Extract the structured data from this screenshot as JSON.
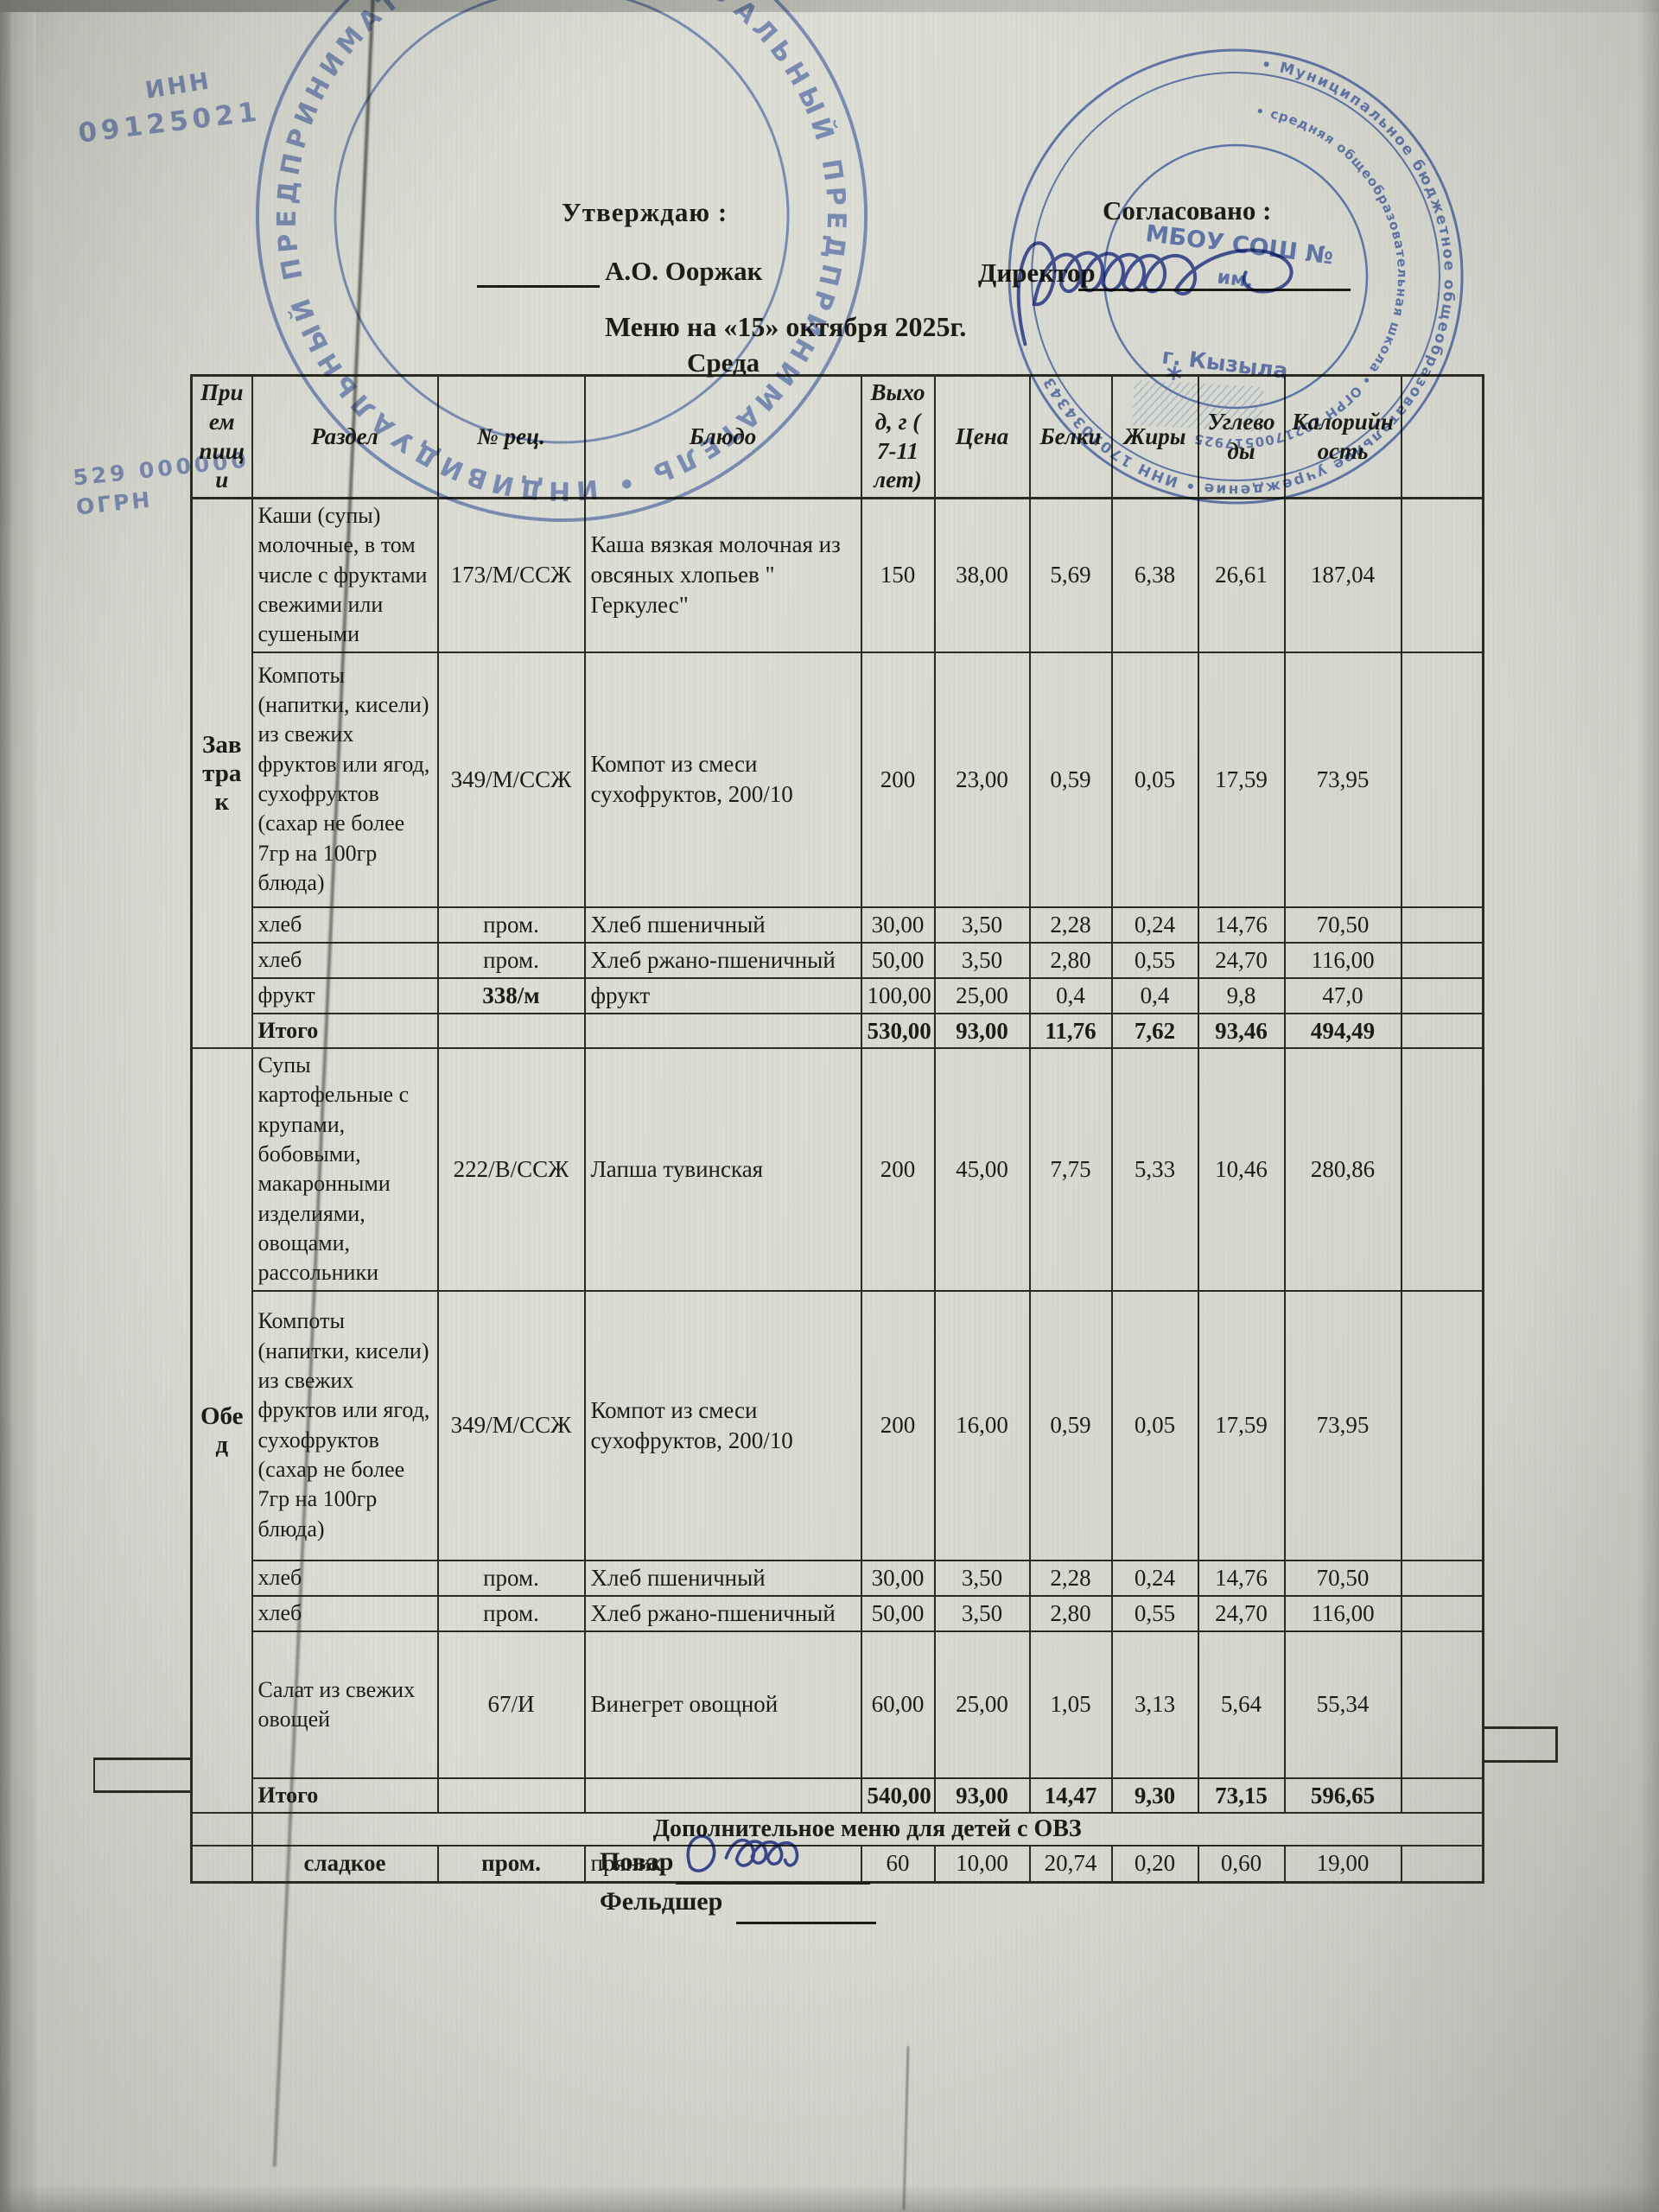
{
  "header": {
    "approve_label": "Утверждаю   :",
    "approve_name": "А.О. Ооржак",
    "agree_label": "Согласовано :",
    "director_label": "Директор",
    "title": "Меню на «15»  октября  2025г.",
    "weekday": "Среда"
  },
  "footer": {
    "cook_label": "Повар",
    "paramedic_label": "Фельдшер"
  },
  "table": {
    "headers": [
      "Прием пищи",
      "Раздел",
      "№ рец.",
      "Блюдо",
      "Выход, г ( 7-11 лет)",
      "Цена",
      "Белки",
      "Жиры",
      "Углеводы",
      "Калорийность"
    ],
    "sections": [
      {
        "meal": "Завтрак",
        "rows": [
          {
            "razdel": "Каши (супы) молочные, в том числе с фруктами свежими или сушеными",
            "rec": "173/М/ССЖ",
            "dish": "Каша вязкая молочная из овсяных хлопьев \" Геркулес\"",
            "values": [
              "150",
              "38,00",
              "5,69",
              "6,38",
              "26,61",
              "187,04"
            ]
          },
          {
            "razdel": "Компоты (напитки, кисели) из свежих фруктов или ягод, сухофруктов (сахар не более 7гр на 100гр блюда)",
            "rec": "349/М/ССЖ",
            "dish": "Компот из смеси сухофруктов, 200/10",
            "values": [
              "200",
              "23,00",
              "0,59",
              "0,05",
              "17,59",
              "73,95"
            ]
          },
          {
            "razdel": "хлеб",
            "rec": "пром.",
            "dish": "Хлеб пшеничный",
            "values": [
              "30,00",
              "3,50",
              "2,28",
              "0,24",
              "14,76",
              "70,50"
            ]
          },
          {
            "razdel": "хлеб",
            "rec": "пром.",
            "dish": "Хлеб ржано-пшеничный",
            "values": [
              "50,00",
              "3,50",
              "2,80",
              "0,55",
              "24,70",
              "116,00"
            ]
          },
          {
            "razdel": "фрукт",
            "rec": "338/м",
            "recBold": true,
            "dish": "фрукт",
            "values": [
              "100,00",
              "25,00",
              "0,4",
              "0,4",
              "9,8",
              "47,0"
            ]
          },
          {
            "razdel": "Итого",
            "rec": "",
            "dish": "",
            "values": [
              "530,00",
              "93,00",
              "11,76",
              "7,62",
              "93,46",
              "494,49"
            ],
            "total": true
          }
        ]
      },
      {
        "meal": "Обед",
        "rows": [
          {
            "razdel": "Супы картофельные с крупами, бобовыми, макаронными изделиями, овощами, рассольники",
            "rec": "222/В/ССЖ",
            "dish": "Лапша тувинская",
            "values": [
              "200",
              "45,00",
              "7,75",
              "5,33",
              "10,46",
              "280,86"
            ]
          },
          {
            "razdel": "Компоты (напитки, кисели) из свежих фруктов или ягод, сухофруктов (сахар не более 7гр на 100гр блюда)",
            "rec": "349/М/ССЖ",
            "dish": "Компот из смеси сухофруктов, 200/10",
            "values": [
              "200",
              "16,00",
              "0,59",
              "0,05",
              "17,59",
              "73,95"
            ]
          },
          {
            "razdel": "хлеб",
            "rec": "пром.",
            "dish": "Хлеб пшеничный",
            "values": [
              "30,00",
              "3,50",
              "2,28",
              "0,24",
              "14,76",
              "70,50"
            ]
          },
          {
            "razdel": "хлеб",
            "rec": "пром.",
            "dish": "Хлеб ржано-пшеничный",
            "values": [
              "50,00",
              "3,50",
              "2,80",
              "0,55",
              "24,70",
              "116,00"
            ]
          },
          {
            "razdel": "Салат из свежих овощей",
            "rec": "67/И",
            "dish": "Винегрет овощной",
            "values": [
              "60,00",
              "25,00",
              "1,05",
              "3,13",
              "5,64",
              "55,34"
            ]
          },
          {
            "razdel": "Итого",
            "rec": "",
            "dish": "",
            "values": [
              "540,00",
              "93,00",
              "14,47",
              "9,30",
              "73,15",
              "596,65"
            ],
            "total": true
          }
        ]
      }
    ],
    "extra_banner": "Дополнительное меню для детей с ОВЗ",
    "extra_row": {
      "razdel": "сладкое",
      "rec": "пром.",
      "dish": "пряник",
      "values": [
        "60",
        "10,00",
        "20,74",
        "0,20",
        "0,60",
        "19,00"
      ]
    }
  },
  "stamps": {
    "ink_color": "#4866ba",
    "left": {
      "rim_text": "• ИНДИВИДУАЛЬНЫЙ ПРЕДПРИНИМАТЕЛЬ • ИНДИВИДУАЛЬНЫЙ ПРЕДПРИНИМАТЕЛЬ ",
      "fragments": [
        "ИНН",
        "09125021",
        "529  000000",
        "ОГРН"
      ]
    },
    "right": {
      "rim_outer": "• Муниципальное бюджетное общеобразовательное учреждение • ИНН 1701034343 ",
      "rim_inner": "• средняя общеобразовательная школа • ОГРН 1021700517925 ",
      "center_line1": "МБОУ СОШ №",
      "center_line2": "им.",
      "city": "г. Кызыла",
      "asterisk": "*"
    }
  }
}
